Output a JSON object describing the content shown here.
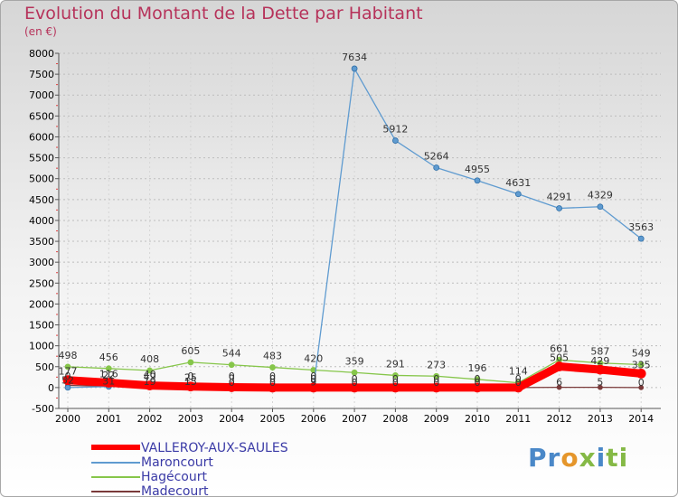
{
  "title": "Evolution du Montant de la Dette par Habitant",
  "unit": "(en €)",
  "logo": {
    "parts": [
      "Pr",
      "o",
      "x",
      "i",
      "ti"
    ],
    "colors": [
      "#4a88c8",
      "#e5962b",
      "#85b946",
      "#4a88c8",
      "#85b946"
    ]
  },
  "chart_data": {
    "type": "line",
    "title": "Evolution du Montant de la Dette par Habitant",
    "ylabel": "(en €)",
    "xlabel": "",
    "ylim": [
      -500,
      8000
    ],
    "yticks": [
      -500,
      0,
      500,
      1000,
      1500,
      2000,
      2500,
      3000,
      3500,
      4000,
      4500,
      5000,
      5500,
      6000,
      6500,
      7000,
      7500,
      8000
    ],
    "categories": [
      "2000",
      "2001",
      "2002",
      "2003",
      "2004",
      "2005",
      "2006",
      "2007",
      "2008",
      "2009",
      "2010",
      "2011",
      "2012",
      "2013",
      "2014"
    ],
    "legend": "bottom-left",
    "series": [
      {
        "name": "VALLEROY-AUX-SAULES",
        "color": "#ff0000",
        "values": [
          177,
          116,
          49,
          25,
          9,
          0,
          0,
          0,
          0,
          0,
          0,
          0,
          505,
          429,
          335
        ]
      },
      {
        "name": "Maroncourt",
        "color": "#5f9bd0",
        "values": [
          0,
          22,
          40,
          0,
          0,
          0,
          0,
          7634,
          5912,
          5264,
          4955,
          4631,
          4291,
          4329,
          3563
        ]
      },
      {
        "name": "Hagécourt",
        "color": "#86c64a",
        "values": [
          498,
          456,
          408,
          605,
          544,
          483,
          420,
          359,
          291,
          273,
          196,
          114,
          661,
          587,
          549
        ]
      },
      {
        "name": "Madecourt",
        "color": "#7a3a3a",
        "values": [
          52,
          31,
          19,
          15,
          0,
          0,
          9,
          0,
          0,
          0,
          0,
          0,
          6,
          5,
          0
        ]
      }
    ],
    "value_labels": {
      "VALLEROY-AUX-SAULES": [
        "177",
        "116",
        "49",
        "25",
        "9",
        "0",
        "0",
        "0",
        "0",
        "0",
        "0",
        "0",
        "505",
        "429",
        "335"
      ],
      "Maroncourt": [
        "0",
        "22",
        "40",
        "0",
        "0",
        "0",
        "0",
        "7634",
        "5912",
        "5264",
        "4955",
        "4631",
        "4291",
        "4329",
        "3563"
      ],
      "Hagécourt": [
        "498",
        "456",
        "408",
        "605",
        "544",
        "483",
        "420",
        "359",
        "291",
        "273",
        "196",
        "114",
        "661",
        "587",
        "549"
      ],
      "Madecourt": [
        "52",
        "31",
        "19",
        "15",
        "0",
        "0",
        "9",
        "0",
        "0",
        "0",
        "0",
        "0",
        "6",
        "5",
        "0"
      ]
    }
  }
}
